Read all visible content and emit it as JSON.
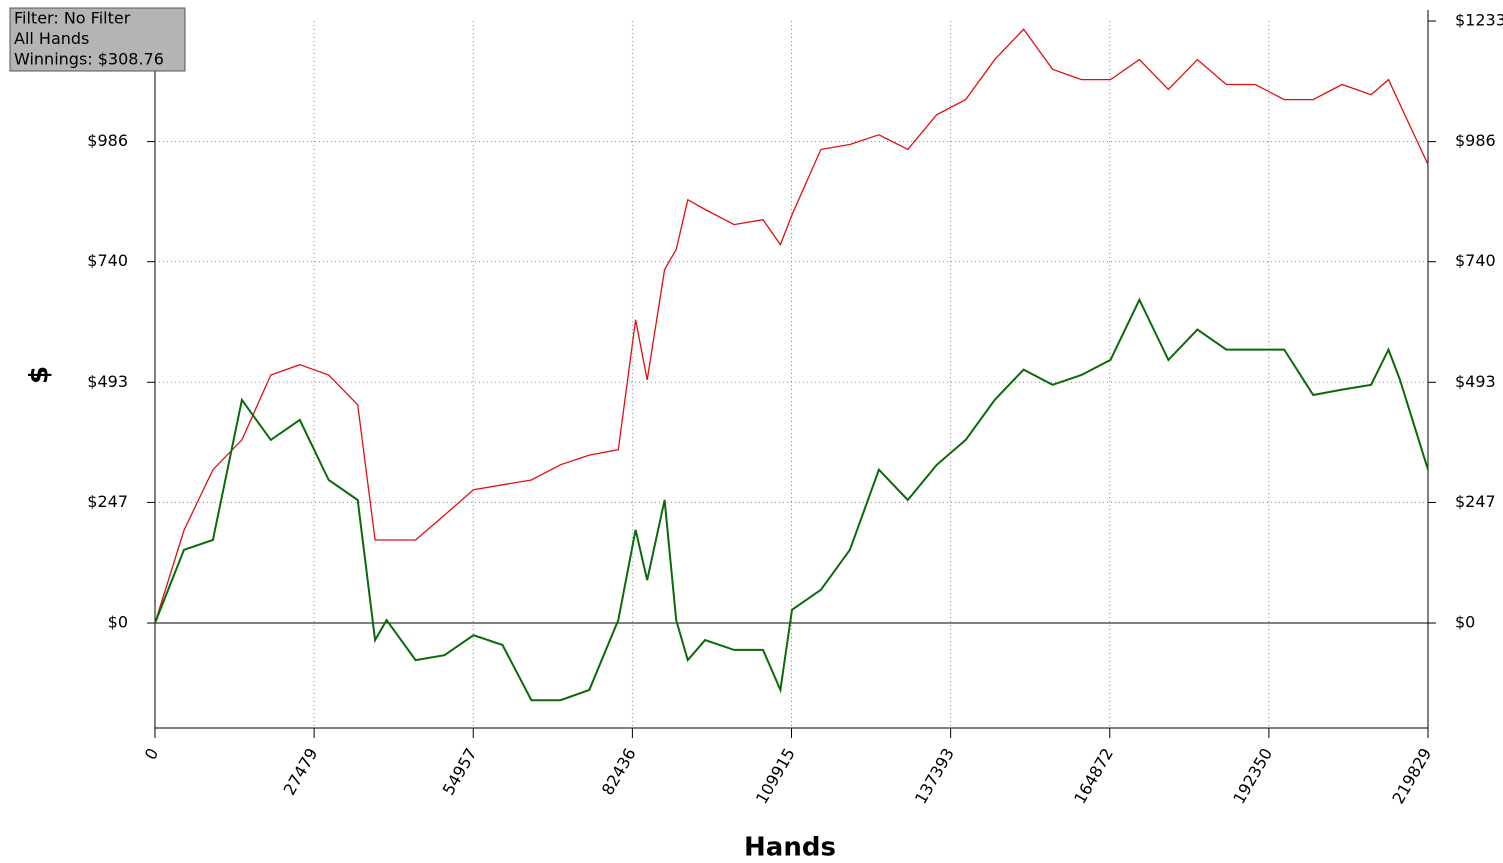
{
  "chart_data": {
    "type": "line",
    "info": [
      "Filter: No Filter",
      "All Hands",
      "Winnings: $308.76"
    ],
    "xlabel": "Hands",
    "ylabel": "$",
    "x": [
      0,
      5000,
      10000,
      15000,
      20000,
      25000,
      30000,
      35000,
      38000,
      40000,
      45000,
      50000,
      55000,
      60000,
      65000,
      70000,
      75000,
      80000,
      83000,
      85000,
      88000,
      90000,
      92000,
      95000,
      100000,
      105000,
      108000,
      110000,
      115000,
      120000,
      125000,
      130000,
      135000,
      140000,
      145000,
      150000,
      155000,
      160000,
      165000,
      170000,
      175000,
      180000,
      185000,
      190000,
      195000,
      200000,
      205000,
      210000,
      213000,
      215000,
      219829
    ],
    "series": [
      {
        "color": "#e01010",
        "values": [
          0,
          190,
          314,
          375,
          508,
          529,
          508,
          447,
          170,
          170,
          170,
          221,
          273,
          283,
          293,
          324,
          344,
          355,
          621,
          498,
          724,
          765,
          867,
          847,
          816,
          826,
          775,
          836,
          970,
          980,
          1000,
          970,
          1041,
          1072,
          1154,
          1216,
          1134,
          1113,
          1113,
          1154,
          1093,
          1154,
          1103,
          1103,
          1072,
          1072,
          1103,
          1082,
          1113,
          1062,
          939
        ]
      },
      {
        "color": "#0a6a0a",
        "values": [
          0,
          150,
          170,
          457,
          375,
          416,
          293,
          252,
          -35,
          6,
          -76,
          -66,
          -25,
          -45,
          -158,
          -158,
          -137,
          6,
          191,
          88,
          252,
          6,
          -76,
          -35,
          -55,
          -55,
          -137,
          27,
          68,
          150,
          314,
          252,
          324,
          375,
          457,
          519,
          488,
          508,
          539,
          662,
          539,
          601,
          560,
          560,
          560,
          467,
          478,
          488,
          560,
          498,
          314
        ]
      }
    ],
    "xlim": [
      0,
      219829
    ],
    "xticks": [
      0,
      27479,
      54957,
      82436,
      109915,
      137393,
      164872,
      192350,
      219829
    ],
    "ylim": [
      -215,
      1233
    ],
    "yticks": [
      {
        "value": 0,
        "label": "$0"
      },
      {
        "value": 247,
        "label": "$247"
      },
      {
        "value": 493,
        "label": "$493"
      },
      {
        "value": 740,
        "label": "$740"
      },
      {
        "value": 986,
        "label": "$986"
      }
    ],
    "y2lim": [
      -215,
      1233
    ],
    "y2ticks": [
      {
        "value": 0,
        "label": "$0"
      },
      {
        "value": 247,
        "label": "$247"
      },
      {
        "value": 493,
        "label": "$493"
      },
      {
        "value": 740,
        "label": "$740"
      },
      {
        "value": 986,
        "label": "$986"
      },
      {
        "value": 1233,
        "label": "$1233"
      }
    ],
    "grid": true
  }
}
